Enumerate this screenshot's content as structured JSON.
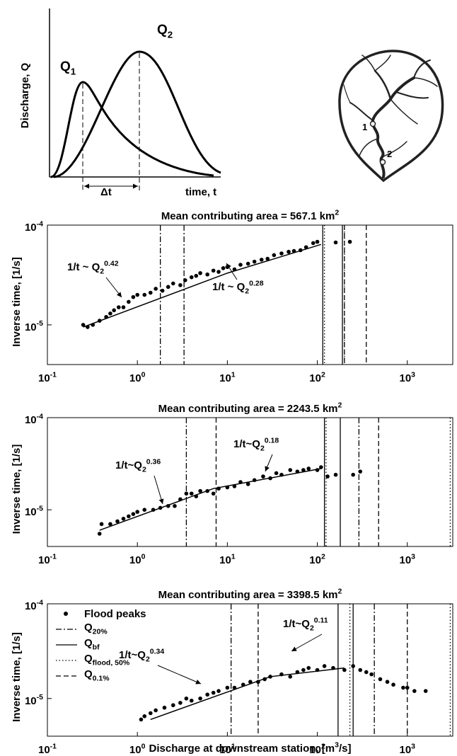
{
  "schematic": {
    "ylabel": "Discharge, Q",
    "curve_1_label": "Q_{1}",
    "curve_2_label": "Q_{2}",
    "lag_label": "Δt",
    "xlabel": "time, t",
    "station_1": "1",
    "station_2": "2"
  },
  "chart_data": [
    {
      "type": "scatter",
      "title": "Mean contributing area = 567.1 km^{2}",
      "ylabel": "Inverse time, [1/s]",
      "log_x": true,
      "log_y": true,
      "xlim": [
        0.1,
        3200
      ],
      "ylim": [
        4e-06,
        0.0001
      ],
      "xticks": [
        {
          "value": 0.1,
          "label": "10^{-1}"
        },
        {
          "value": 1,
          "label": "10^{0}"
        },
        {
          "value": 10,
          "label": "10^{1}"
        },
        {
          "value": 100,
          "label": "10^{2}"
        },
        {
          "value": 1000,
          "label": "10^{3}"
        }
      ],
      "yticks": [
        {
          "value": 1e-05,
          "label": "10^{-5}"
        },
        {
          "value": 0.0001,
          "label": "10^{-4}"
        }
      ],
      "series": [
        {
          "color": "#000000",
          "x": [
            0.25,
            0.28,
            0.32,
            0.38,
            0.45,
            0.5,
            0.55,
            0.62,
            0.7,
            0.8,
            0.9,
            1.0,
            1.2,
            1.4,
            1.6,
            1.9,
            2.2,
            2.5,
            3.0,
            3.4,
            4,
            4.5,
            5,
            6,
            7,
            8,
            9,
            10,
            12,
            14,
            17,
            20,
            24,
            28,
            33,
            40,
            48,
            55,
            65,
            75,
            90,
            100,
            160,
            230
          ],
          "values": [
            1e-05,
            9.5e-06,
            1e-05,
            1.1e-05,
            1.2e-05,
            1.3e-05,
            1.4e-05,
            1.5e-05,
            1.5e-05,
            1.7e-05,
            1.9e-05,
            2e-05,
            2e-05,
            2.1e-05,
            2.3e-05,
            2.2e-05,
            2.4e-05,
            2.6e-05,
            2.5e-05,
            2.8e-05,
            3e-05,
            3.1e-05,
            3.3e-05,
            3.2e-05,
            3.5e-05,
            3.4e-05,
            3.7e-05,
            3.8e-05,
            3.6e-05,
            4e-05,
            4.1e-05,
            4.3e-05,
            4.5e-05,
            4.6e-05,
            5e-05,
            5.2e-05,
            5.4e-05,
            5.5e-05,
            5.6e-05,
            6e-05,
            6.6e-05,
            6.8e-05,
            6.7e-05,
            6.8e-05
          ]
        }
      ],
      "fit_lines": [
        {
          "x": [
            0.25,
            10,
            110
          ],
          "values": [
            9.5e-06,
            3.3e-05,
            6.4e-05
          ]
        }
      ],
      "reference_lines": [
        {
          "style": "dashdot",
          "x": [
            1.8,
            3.3
          ]
        },
        {
          "style": "solid",
          "x": [
            115,
            190
          ]
        },
        {
          "style": "dotted",
          "x": [
            120,
            200
          ]
        },
        {
          "style": "dashed",
          "x": [
            200,
            350
          ]
        }
      ],
      "annotations": [
        {
          "text": "1/t ~ Q_{2}^{0.42}"
        },
        {
          "text": "1/t ~ Q_{2}^{0.28}"
        }
      ]
    },
    {
      "type": "scatter",
      "title": "Mean contributing area = 2243.5 km^{2}",
      "ylabel": "Inverse time, [1/s]",
      "log_x": true,
      "log_y": true,
      "xlim": [
        0.1,
        3200
      ],
      "ylim": [
        4e-06,
        0.0001
      ],
      "xticks": [
        {
          "value": 0.1,
          "label": "10^{-1}"
        },
        {
          "value": 1,
          "label": "10^{0}"
        },
        {
          "value": 10,
          "label": "10^{1}"
        },
        {
          "value": 100,
          "label": "10^{2}"
        },
        {
          "value": 1000,
          "label": "10^{3}"
        }
      ],
      "yticks": [
        {
          "value": 1e-05,
          "label": "10^{-5}"
        },
        {
          "value": 0.0001,
          "label": "10^{-4}"
        }
      ],
      "series": [
        {
          "color": "#000000",
          "x": [
            0.38,
            0.4,
            0.5,
            0.6,
            0.7,
            0.8,
            0.9,
            1.0,
            1.2,
            1.5,
            1.8,
            2.2,
            2.6,
            3,
            3.5,
            4,
            4.5,
            5,
            6,
            7,
            8,
            10,
            12,
            14,
            17,
            20,
            25,
            30,
            35,
            40,
            50,
            60,
            70,
            80,
            100,
            110,
            130,
            160,
            250,
            300
          ],
          "values": [
            5.5e-06,
            7e-06,
            7e-06,
            7.5e-06,
            8e-06,
            8.5e-06,
            9e-06,
            9.5e-06,
            1e-05,
            1e-05,
            1.05e-05,
            1.1e-05,
            1.1e-05,
            1.3e-05,
            1.5e-05,
            1.5e-05,
            1.4e-05,
            1.6e-05,
            1.6e-05,
            1.5e-05,
            1.7e-05,
            1.75e-05,
            1.8e-05,
            2e-05,
            1.9e-05,
            2.1e-05,
            2.3e-05,
            2.2e-05,
            2.5e-05,
            2.4e-05,
            2.7e-05,
            2.6e-05,
            2.7e-05,
            2.8e-05,
            2.7e-05,
            2.9e-05,
            2.3e-05,
            2.4e-05,
            2.4e-05,
            2.6e-05
          ]
        }
      ],
      "fit_lines": [
        {
          "x": [
            0.38,
            7,
            110
          ],
          "values": [
            6e-06,
            1.7e-05,
            2.8e-05
          ]
        }
      ],
      "reference_lines": [
        {
          "style": "dashdot",
          "x": [
            3.5,
            290
          ]
        },
        {
          "style": "solid",
          "x": [
            120,
            180
          ]
        },
        {
          "style": "dotted",
          "x": [
            125,
            3000
          ]
        },
        {
          "style": "dashed",
          "x": [
            7.5,
            480
          ]
        }
      ],
      "annotations": [
        {
          "text": "1/t~Q_{2}^{0.36}"
        },
        {
          "text": "1/t~Q_{2}^{0.18}"
        }
      ]
    },
    {
      "type": "scatter",
      "title": "Mean contributing area = 3398.5 km^{2}",
      "ylabel": "Inverse time, [1/s]",
      "xlabel": "Discharge at downstream station, [m^{3}/s]",
      "log_x": true,
      "log_y": true,
      "xlim": [
        0.1,
        3200
      ],
      "ylim": [
        4e-06,
        0.0001
      ],
      "xticks": [
        {
          "value": 0.1,
          "label": "10^{-1}"
        },
        {
          "value": 1,
          "label": "10^{0}"
        },
        {
          "value": 10,
          "label": "10^{1}"
        },
        {
          "value": 100,
          "label": "10^{2}"
        },
        {
          "value": 1000,
          "label": "10^{3}"
        }
      ],
      "yticks": [
        {
          "value": 1e-05,
          "label": "10^{-5}"
        },
        {
          "value": 0.0001,
          "label": "10^{-4}"
        }
      ],
      "legend": "upper left",
      "series": [
        {
          "name": "Flood peaks",
          "color": "#000000",
          "x": [
            1.1,
            1.2,
            1.4,
            1.6,
            2,
            2.5,
            3,
            3.5,
            4,
            5,
            6,
            7,
            8,
            10,
            12,
            15,
            18,
            22,
            26,
            30,
            40,
            50,
            60,
            70,
            80,
            100,
            120,
            150,
            200,
            250,
            300,
            350,
            400,
            500,
            600,
            700,
            900,
            1000,
            1200,
            1600
          ],
          "values": [
            6e-06,
            6.5e-06,
            7e-06,
            7.5e-06,
            8e-06,
            8.5e-06,
            9e-06,
            1e-05,
            9.5e-06,
            1e-05,
            1.1e-05,
            1.15e-05,
            1.2e-05,
            1.3e-05,
            1.3e-05,
            1.4e-05,
            1.5e-05,
            1.5e-05,
            1.6e-05,
            1.7e-05,
            1.8e-05,
            1.7e-05,
            1.9e-05,
            2e-05,
            2.1e-05,
            2e-05,
            2.2e-05,
            2.1e-05,
            2e-05,
            2.2e-05,
            2e-05,
            1.9e-05,
            1.8e-05,
            1.6e-05,
            1.5e-05,
            1.4e-05,
            1.3e-05,
            1.3e-05,
            1.2e-05,
            1.2e-05
          ]
        }
      ],
      "fit_lines": [
        {
          "x": [
            1.4,
            30,
            200
          ],
          "values": [
            6e-06,
            1.7e-05,
            2.1e-05
          ]
        }
      ],
      "reference_lines": [
        {
          "name": "Q_{20%}",
          "style": "dashdot",
          "x": [
            11,
            430
          ]
        },
        {
          "name": "Q_{bf}",
          "style": "solid",
          "x": [
            170,
            250
          ]
        },
        {
          "name": "Q_{flood, 50%}",
          "style": "dotted",
          "x": [
            230,
            3000
          ]
        },
        {
          "name": "Q_{0.1%}",
          "style": "dashed",
          "x": [
            22,
            1000
          ]
        }
      ],
      "annotations": [
        {
          "text": "1/t~Q_{2}^{0.34}"
        },
        {
          "text": "1/t~Q_{2}^{0.11}"
        }
      ]
    }
  ]
}
